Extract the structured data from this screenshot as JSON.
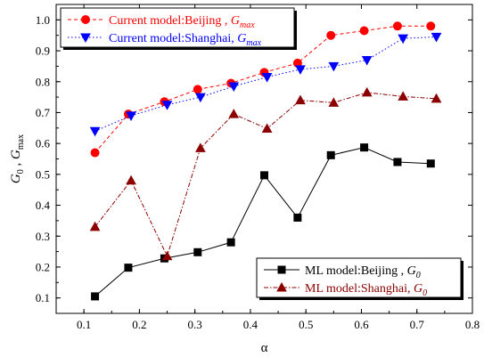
{
  "chart_data": {
    "type": "line",
    "xlabel": "α",
    "ylabel": {
      "g": "G",
      "sub0": "0",
      "sep": " , ",
      "sub1": "max"
    },
    "xlim": [
      0.05,
      0.8
    ],
    "ylim": [
      0.05,
      1.05
    ],
    "xticks": [
      0.1,
      0.2,
      0.3,
      0.4,
      0.5,
      0.6,
      0.7,
      0.8
    ],
    "xtick_labels": [
      "0.1",
      "0.2",
      "0.3",
      "0.4",
      "0.5",
      "0.6",
      "0.7",
      "0.8"
    ],
    "yticks": [
      0.1,
      0.2,
      0.3,
      0.4,
      0.5,
      0.6,
      0.7,
      0.8,
      0.9,
      1.0
    ],
    "ytick_labels": [
      "0.1",
      "0.2",
      "0.3",
      "0.4",
      "0.5",
      "0.6",
      "0.7",
      "0.8",
      "0.9",
      "1.0"
    ],
    "grid": false,
    "series": [
      {
        "name": "Current model:Beijing , G_max",
        "legend_main": "Current model:Beijing , ",
        "legend_g": "G",
        "legend_sub": "max",
        "legend_group": "top",
        "color": "#ff0000",
        "marker": "circle",
        "line": "dashed",
        "x": [
          0.12,
          0.18,
          0.245,
          0.305,
          0.365,
          0.425,
          0.485,
          0.545,
          0.605,
          0.665,
          0.725
        ],
        "y": [
          0.57,
          0.695,
          0.735,
          0.775,
          0.795,
          0.83,
          0.86,
          0.95,
          0.965,
          0.98,
          0.98
        ]
      },
      {
        "name": "Current model:Shanghai, G_max",
        "legend_main": "Current model:Shanghai, ",
        "legend_g": "G",
        "legend_sub": "max",
        "legend_group": "top",
        "color": "#0000ff",
        "marker": "triangle-down",
        "line": "dotted",
        "x": [
          0.12,
          0.185,
          0.25,
          0.31,
          0.37,
          0.43,
          0.49,
          0.55,
          0.61,
          0.675,
          0.735
        ],
        "y": [
          0.64,
          0.69,
          0.725,
          0.75,
          0.785,
          0.815,
          0.84,
          0.85,
          0.87,
          0.94,
          0.945
        ]
      },
      {
        "name": "ML model:Beijing , G_0",
        "legend_main": "ML model:Beijing , ",
        "legend_g": "G",
        "legend_sub": "0",
        "legend_group": "bottom",
        "color": "#000000",
        "marker": "square",
        "line": "solid",
        "x": [
          0.12,
          0.18,
          0.245,
          0.305,
          0.365,
          0.425,
          0.485,
          0.545,
          0.605,
          0.665,
          0.725
        ],
        "y": [
          0.105,
          0.198,
          0.228,
          0.248,
          0.28,
          0.497,
          0.36,
          0.562,
          0.587,
          0.54,
          0.535
        ]
      },
      {
        "name": "ML model:Shanghai, G_0",
        "legend_main": "ML model:Shanghai, ",
        "legend_g": "G",
        "legend_sub": "0",
        "legend_group": "bottom",
        "color": "#8b0000",
        "marker": "triangle-up",
        "line": "dashdot",
        "x": [
          0.12,
          0.185,
          0.25,
          0.31,
          0.37,
          0.43,
          0.49,
          0.55,
          0.61,
          0.675,
          0.735
        ],
        "y": [
          0.33,
          0.48,
          0.235,
          0.585,
          0.695,
          0.648,
          0.74,
          0.732,
          0.765,
          0.752,
          0.745
        ]
      }
    ],
    "legends": {
      "top": "top-left",
      "bottom": "bottom-right"
    }
  }
}
